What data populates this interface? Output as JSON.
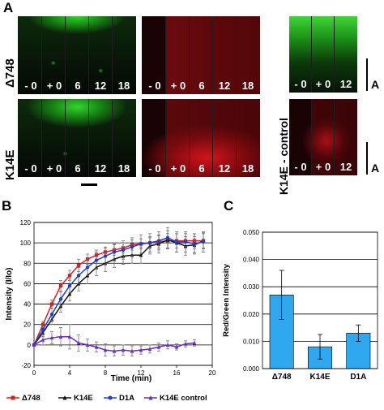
{
  "panel_a": {
    "letter": "A",
    "row_labels": [
      "Δ748",
      "K14E"
    ],
    "control_label": "K14E - control",
    "time_labels": [
      "- 0",
      "+ 0",
      "6",
      "12",
      "18"
    ],
    "control_time_labels": [
      "- 0",
      "+ 0",
      "12"
    ],
    "scale_label": "A",
    "colors": {
      "green": "#22c41e",
      "red": "#e8121a"
    }
  },
  "panel_b": {
    "letter": "B"
  },
  "panel_c": {
    "letter": "C"
  },
  "chart_data": [
    {
      "type": "line",
      "xlabel": "Time (min)",
      "ylabel": "Intensity (I/Io)",
      "xlim": [
        0,
        20
      ],
      "ylim": [
        -20,
        120
      ],
      "xticks": [
        0,
        4,
        8,
        12,
        16,
        20
      ],
      "yticks": [
        -20,
        0,
        20,
        40,
        60,
        80,
        100,
        120
      ],
      "grid": "horizontal",
      "legend": "bottom",
      "series": [
        {
          "name": "Δ748",
          "color": "#d42020",
          "marker": "square",
          "x": [
            0,
            1,
            2,
            3,
            4,
            5,
            6,
            7,
            8,
            9,
            10,
            11,
            12,
            13,
            14,
            15,
            16,
            17,
            18,
            19
          ],
          "y": [
            0,
            20,
            40,
            58,
            68,
            78,
            84,
            88,
            91,
            93,
            95,
            98,
            99,
            100,
            101,
            102,
            102,
            102,
            102,
            102
          ],
          "err": [
            0,
            3,
            4,
            5,
            5,
            6,
            5,
            5,
            5,
            5,
            5,
            5,
            5,
            6,
            6,
            7,
            7,
            7,
            7,
            7
          ]
        },
        {
          "name": "K14E",
          "color": "#111111",
          "marker": "triangle",
          "x": [
            0,
            1,
            2,
            3,
            4,
            5,
            6,
            7,
            8,
            9,
            10,
            11,
            12,
            13,
            14,
            15,
            16,
            17,
            18,
            19
          ],
          "y": [
            0,
            12,
            25,
            38,
            50,
            60,
            68,
            76,
            80,
            84,
            87,
            88,
            88,
            97,
            99,
            103,
            100,
            97,
            98,
            102
          ],
          "err": [
            0,
            4,
            5,
            6,
            7,
            7,
            8,
            8,
            8,
            8,
            8,
            8,
            8,
            8,
            9,
            9,
            9,
            9,
            8,
            8
          ]
        },
        {
          "name": "D1A",
          "color": "#1c3fcf",
          "marker": "circle",
          "x": [
            0,
            1,
            2,
            3,
            4,
            5,
            6,
            7,
            8,
            9,
            10,
            11,
            12,
            13,
            14,
            15,
            16,
            17,
            18,
            19
          ],
          "y": [
            0,
            15,
            30,
            45,
            58,
            68,
            76,
            83,
            87,
            91,
            93,
            96,
            99,
            100,
            102,
            105,
            101,
            101,
            99,
            101
          ],
          "err": [
            0,
            4,
            6,
            7,
            7,
            8,
            8,
            8,
            8,
            8,
            9,
            9,
            9,
            9,
            9,
            10,
            10,
            10,
            10,
            10
          ]
        },
        {
          "name": "K14E control",
          "color": "#6a2cc4",
          "marker": "triangle",
          "x": [
            0,
            1,
            2,
            3,
            4,
            5,
            6,
            7,
            8,
            9,
            10,
            11,
            12,
            13,
            14,
            15,
            16,
            17,
            18
          ],
          "y": [
            0,
            5,
            7,
            8,
            8,
            2,
            0,
            -2,
            -5,
            -6,
            -5,
            -6,
            -5,
            -4,
            -2,
            0,
            -2,
            1,
            2
          ],
          "err": [
            0,
            5,
            6,
            9,
            12,
            8,
            6,
            5,
            6,
            5,
            5,
            5,
            4,
            4,
            4,
            4,
            3,
            3,
            3
          ]
        }
      ]
    },
    {
      "type": "bar",
      "ylabel": "Red/Green Intensity",
      "categories": [
        "Δ748",
        "K14E",
        "D1A"
      ],
      "values": [
        0.027,
        0.008,
        0.013
      ],
      "errors": [
        0.009,
        0.0045,
        0.003
      ],
      "ylim": [
        0,
        0.05
      ],
      "yticks": [
        "0.000",
        "0.010",
        "0.020",
        "0.030",
        "0.040",
        "0.050"
      ],
      "bar_color": "#30a8f0",
      "grid": "horizontal"
    }
  ]
}
